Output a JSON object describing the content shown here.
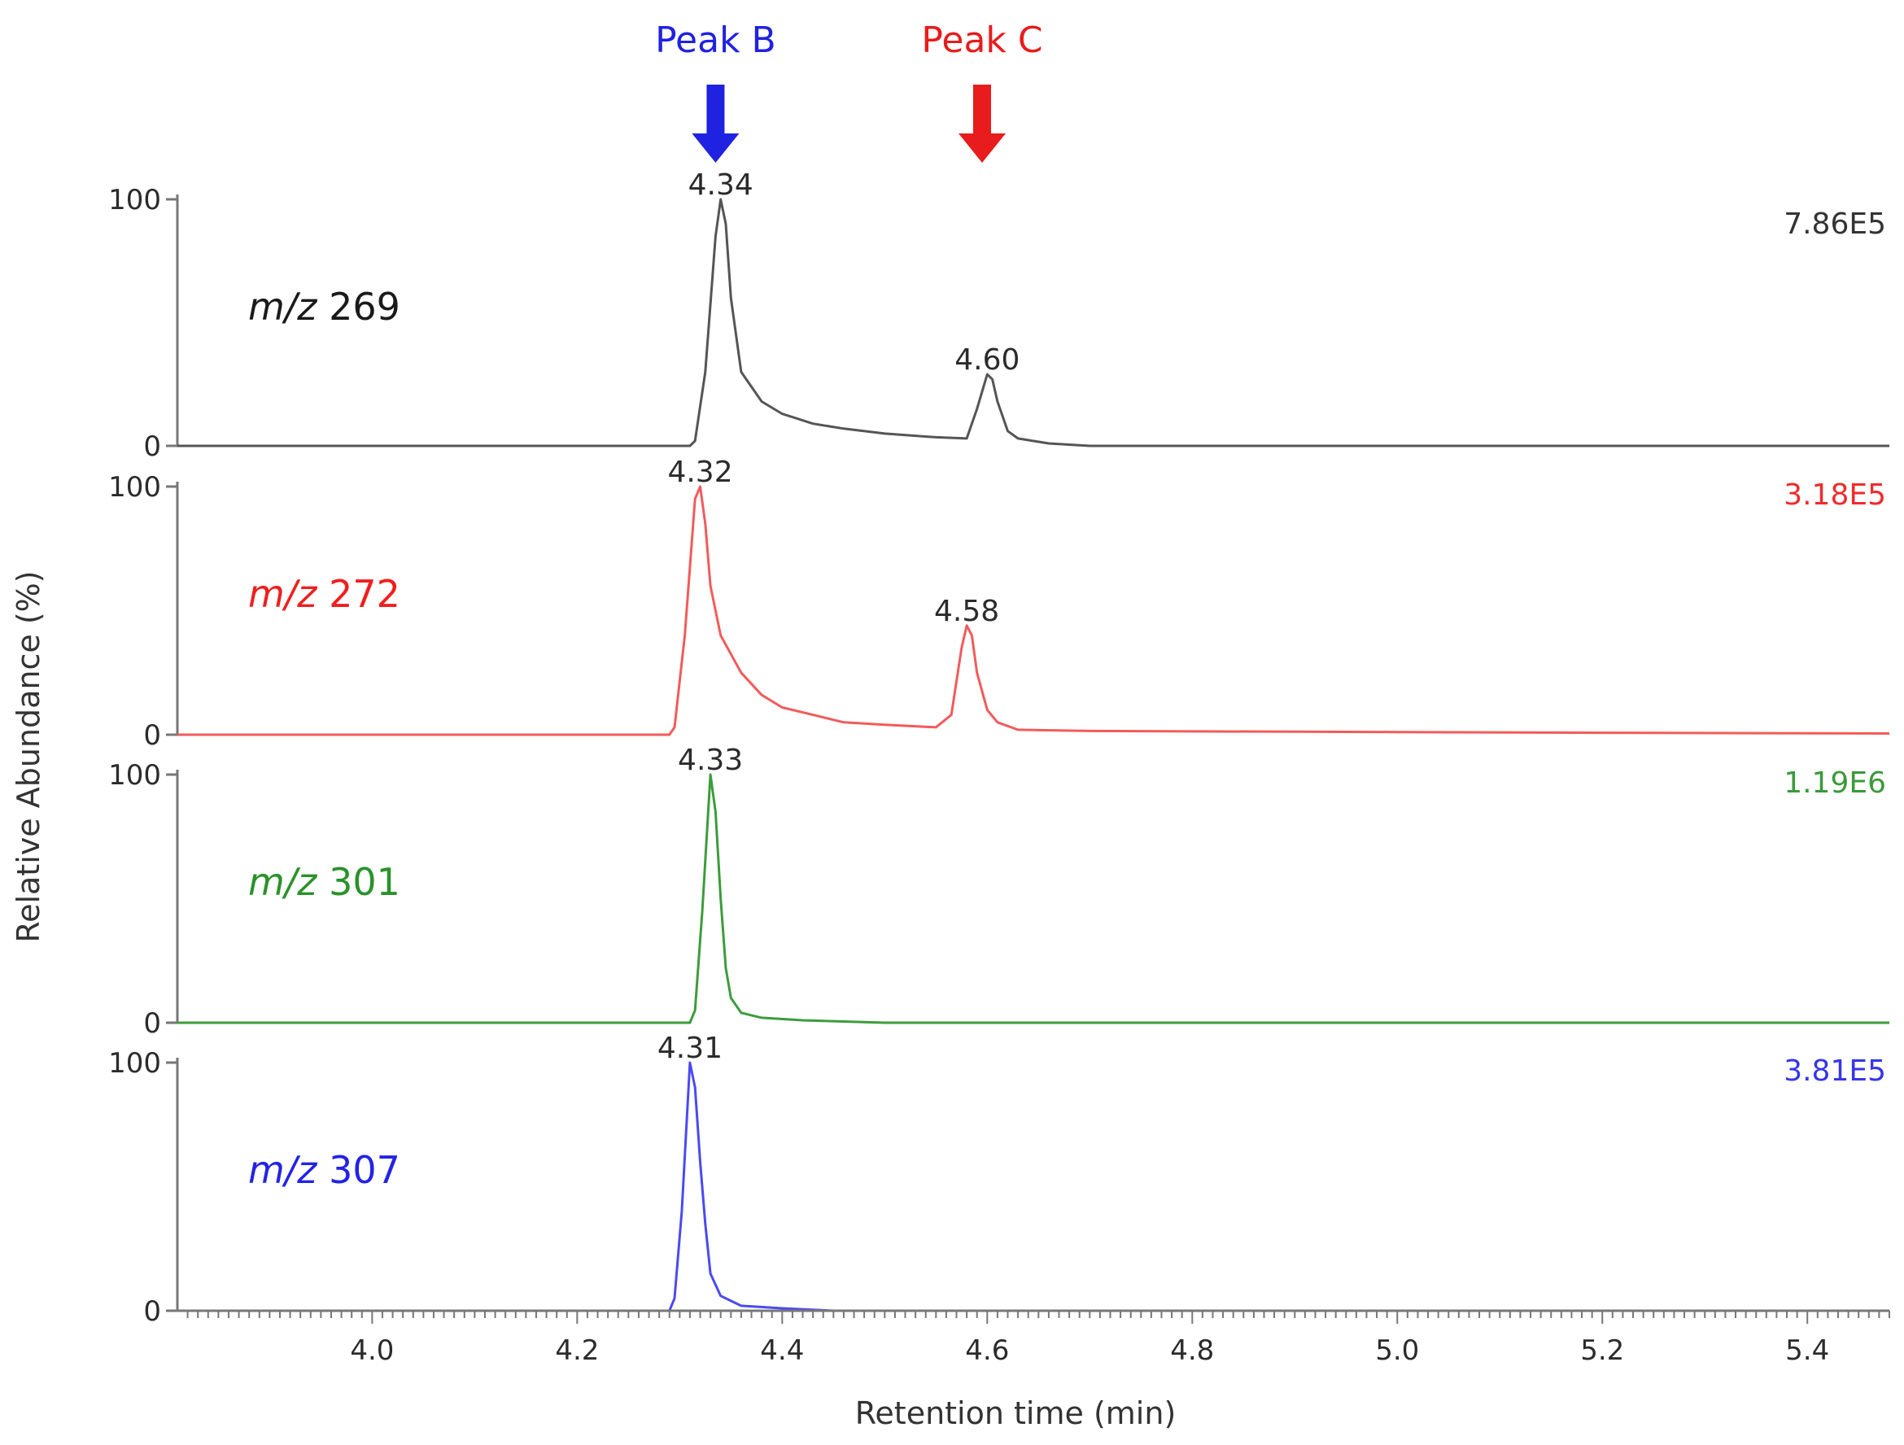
{
  "chart_data": {
    "type": "line",
    "xlabel": "Retention time (min)",
    "ylabel": "Relative Abundance (%)",
    "xlim": [
      3.81,
      5.48
    ],
    "ylim": [
      0,
      100
    ],
    "x_ticks": [
      "4.0",
      "4.2",
      "4.4",
      "4.6",
      "4.8",
      "5.0",
      "5.2",
      "5.4"
    ],
    "y_ticks": [
      "0",
      "100"
    ],
    "grid": false,
    "arrows": [
      {
        "label": "Peak B",
        "x": 4.335,
        "color": "#1f22e0"
      },
      {
        "label": "Peak C",
        "x": 4.595,
        "color": "#e81c1c"
      }
    ],
    "series": [
      {
        "name": "m/z 269",
        "ion_prefix": "m/z",
        "ion_value": "269",
        "scale": "7.86E5",
        "color": "#555555",
        "label_color": "#1a1a1a",
        "scale_color": "#333333",
        "peak_labels": [
          {
            "x": 4.34,
            "y": 100,
            "text": "4.34"
          },
          {
            "x": 4.6,
            "y": 29,
            "text": "4.60"
          }
        ],
        "points": [
          [
            3.81,
            0
          ],
          [
            4.31,
            0
          ],
          [
            4.315,
            2
          ],
          [
            4.325,
            30
          ],
          [
            4.335,
            85
          ],
          [
            4.34,
            100
          ],
          [
            4.345,
            90
          ],
          [
            4.35,
            60
          ],
          [
            4.36,
            30
          ],
          [
            4.38,
            18
          ],
          [
            4.4,
            13
          ],
          [
            4.43,
            9
          ],
          [
            4.46,
            7
          ],
          [
            4.5,
            5
          ],
          [
            4.55,
            3.5
          ],
          [
            4.58,
            3
          ],
          [
            4.59,
            15
          ],
          [
            4.6,
            29
          ],
          [
            4.605,
            27
          ],
          [
            4.61,
            18
          ],
          [
            4.62,
            6
          ],
          [
            4.63,
            3
          ],
          [
            4.66,
            1
          ],
          [
            4.7,
            0
          ],
          [
            5.48,
            0
          ]
        ]
      },
      {
        "name": "m/z 272",
        "ion_prefix": "m/z",
        "ion_value": "272",
        "scale": "3.18E5",
        "color": "#f25b5b",
        "label_color": "#ef1f1f",
        "scale_color": "#ef2b2b",
        "peak_labels": [
          {
            "x": 4.32,
            "y": 100,
            "text": "4.32"
          },
          {
            "x": 4.58,
            "y": 44,
            "text": "4.58"
          }
        ],
        "points": [
          [
            3.81,
            0
          ],
          [
            4.29,
            0
          ],
          [
            4.295,
            3
          ],
          [
            4.305,
            40
          ],
          [
            4.315,
            95
          ],
          [
            4.32,
            100
          ],
          [
            4.325,
            85
          ],
          [
            4.33,
            60
          ],
          [
            4.34,
            40
          ],
          [
            4.36,
            25
          ],
          [
            4.38,
            16
          ],
          [
            4.4,
            11
          ],
          [
            4.43,
            8
          ],
          [
            4.46,
            5
          ],
          [
            4.5,
            4
          ],
          [
            4.55,
            3
          ],
          [
            4.565,
            8
          ],
          [
            4.575,
            35
          ],
          [
            4.58,
            44
          ],
          [
            4.585,
            40
          ],
          [
            4.59,
            25
          ],
          [
            4.6,
            10
          ],
          [
            4.61,
            5
          ],
          [
            4.63,
            2
          ],
          [
            4.7,
            1.5
          ],
          [
            4.9,
            1.2
          ],
          [
            5.2,
            0.8
          ],
          [
            5.48,
            0.5
          ]
        ]
      },
      {
        "name": "m/z 301",
        "ion_prefix": "m/z",
        "ion_value": "301",
        "scale": "1.19E6",
        "color": "#3c9c3c",
        "label_color": "#2a922a",
        "scale_color": "#3a9a3a",
        "peak_labels": [
          {
            "x": 4.33,
            "y": 100,
            "text": "4.33"
          }
        ],
        "points": [
          [
            3.81,
            0
          ],
          [
            4.31,
            0
          ],
          [
            4.315,
            5
          ],
          [
            4.322,
            45
          ],
          [
            4.33,
            100
          ],
          [
            4.335,
            85
          ],
          [
            4.34,
            50
          ],
          [
            4.345,
            22
          ],
          [
            4.35,
            10
          ],
          [
            4.36,
            4
          ],
          [
            4.38,
            2
          ],
          [
            4.42,
            1
          ],
          [
            4.5,
            0
          ],
          [
            5.48,
            0
          ]
        ]
      },
      {
        "name": "m/z 307",
        "ion_prefix": "m/z",
        "ion_value": "307",
        "scale": "3.81E5",
        "color": "#4a4af0",
        "label_color": "#2323e6",
        "scale_color": "#3535ea",
        "peak_labels": [
          {
            "x": 4.31,
            "y": 100,
            "text": "4.31"
          }
        ],
        "points": [
          [
            3.81,
            0
          ],
          [
            4.29,
            0
          ],
          [
            4.295,
            5
          ],
          [
            4.302,
            40
          ],
          [
            4.31,
            100
          ],
          [
            4.315,
            90
          ],
          [
            4.32,
            60
          ],
          [
            4.325,
            35
          ],
          [
            4.33,
            15
          ],
          [
            4.34,
            6
          ],
          [
            4.36,
            2
          ],
          [
            4.4,
            1
          ],
          [
            4.45,
            0
          ],
          [
            5.48,
            0
          ]
        ]
      }
    ]
  }
}
